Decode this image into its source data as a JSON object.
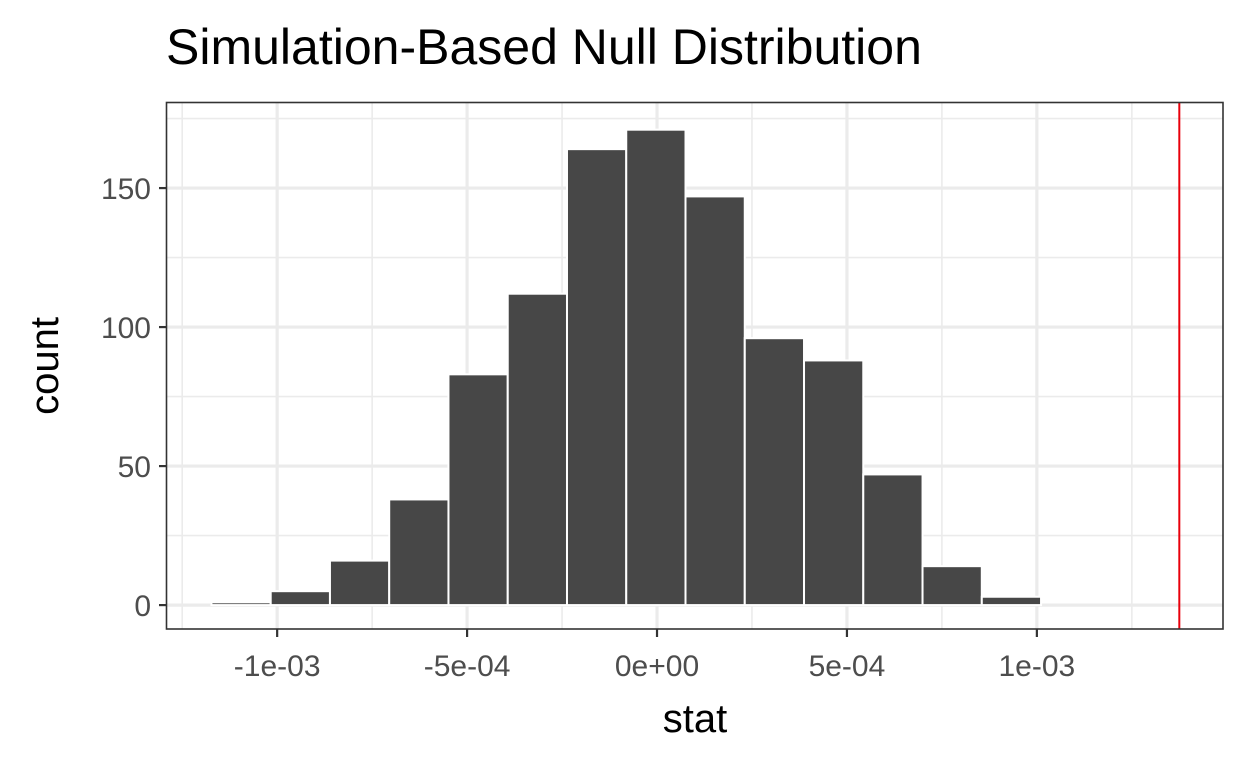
{
  "chart_data": {
    "type": "bar",
    "title": "Simulation-Based Null Distribution",
    "xlabel": "stat",
    "ylabel": "count",
    "xlim": [
      -0.00129,
      0.00149
    ],
    "ylim": [
      -8.6,
      180.6
    ],
    "x_ticks": [
      {
        "value": -0.001,
        "label": "-1e-03"
      },
      {
        "value": -0.0005,
        "label": "-5e-04"
      },
      {
        "value": 0,
        "label": "0e+00"
      },
      {
        "value": 0.0005,
        "label": "5e-04"
      },
      {
        "value": 0.001,
        "label": "1e-03"
      }
    ],
    "y_ticks": [
      {
        "value": 0,
        "label": "0"
      },
      {
        "value": 50,
        "label": "50"
      },
      {
        "value": 100,
        "label": "100"
      },
      {
        "value": 150,
        "label": "150"
      }
    ],
    "bin_width": 0.000156,
    "bins": [
      {
        "center": -0.001095,
        "count": 1
      },
      {
        "center": -0.000939,
        "count": 5
      },
      {
        "center": -0.000783,
        "count": 16
      },
      {
        "center": -0.000627,
        "count": 38
      },
      {
        "center": -0.000471,
        "count": 83
      },
      {
        "center": -0.000315,
        "count": 112
      },
      {
        "center": -0.000159,
        "count": 164
      },
      {
        "center": -3e-06,
        "count": 171
      },
      {
        "center": 0.000153,
        "count": 147
      },
      {
        "center": 0.000309,
        "count": 96
      },
      {
        "center": 0.000465,
        "count": 88
      },
      {
        "center": 0.000621,
        "count": 47
      },
      {
        "center": 0.000777,
        "count": 14
      },
      {
        "center": 0.000933,
        "count": 3
      },
      {
        "center": 0.001089,
        "count": 0
      }
    ],
    "reference_line": {
      "x": 0.001375,
      "color": "#e8000b"
    },
    "bar_color": "#474747",
    "grid": true,
    "theme": "bw"
  }
}
